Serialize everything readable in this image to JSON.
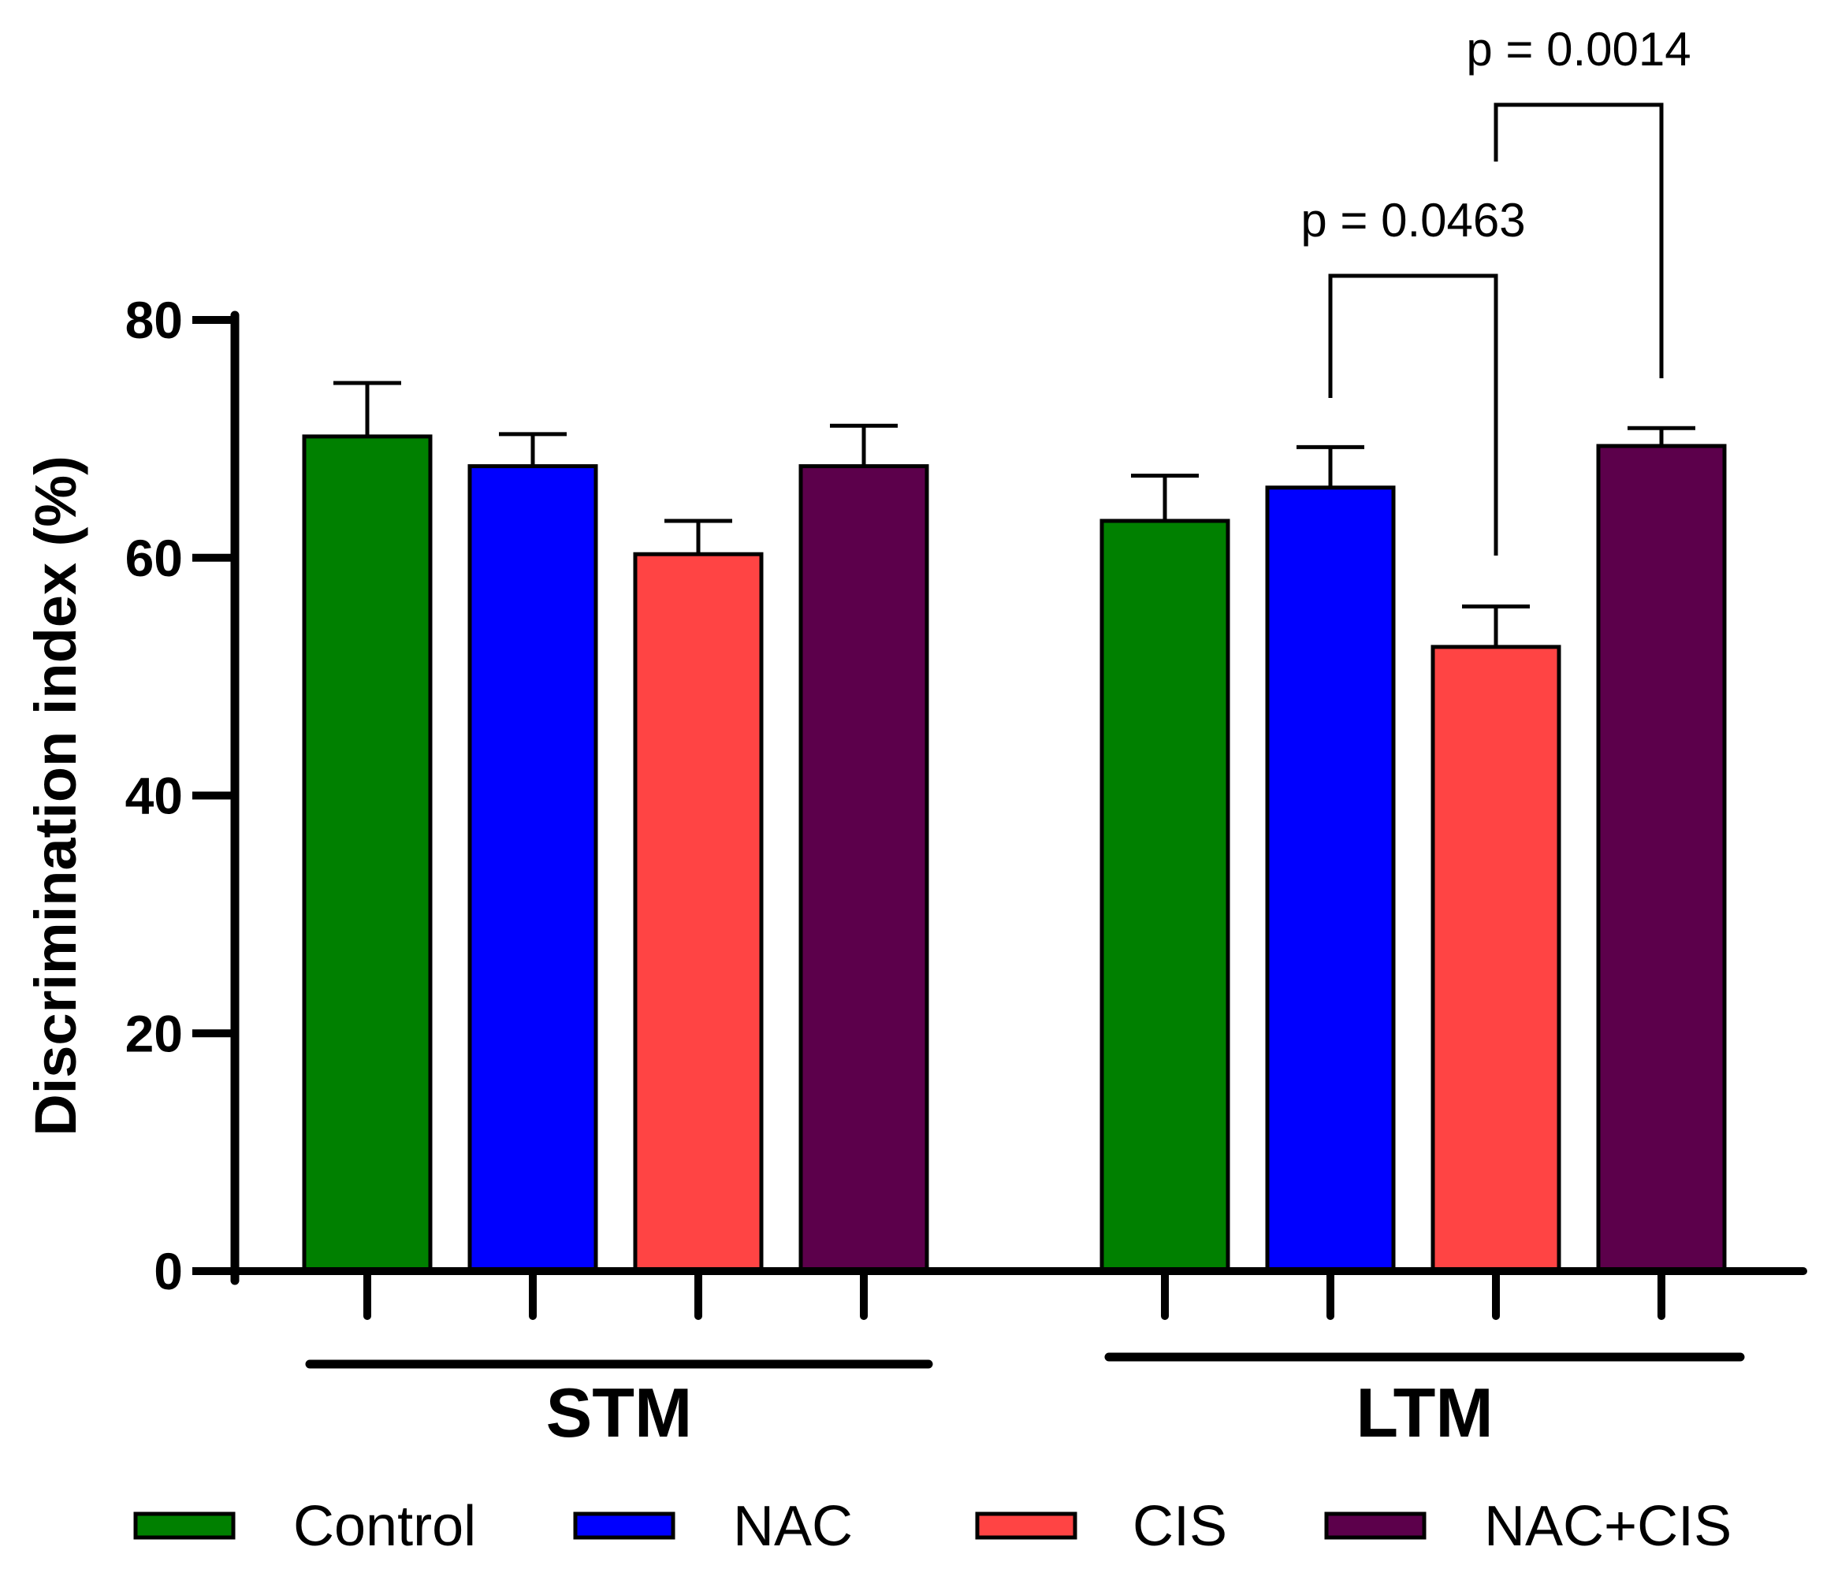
{
  "chart_data": {
    "type": "bar",
    "title": "",
    "xlabel": "",
    "ylabel": "Discrimination index (%)",
    "ylim": [
      0,
      80
    ],
    "yticks": [
      0,
      20,
      40,
      60,
      80
    ],
    "groups": [
      "STM",
      "LTM"
    ],
    "series": [
      {
        "name": "Control",
        "color": "#008000",
        "values": [
          70.2,
          63.1
        ],
        "errors": [
          4.5,
          3.8
        ]
      },
      {
        "name": "NAC",
        "color": "#0000ff",
        "values": [
          67.7,
          65.9
        ],
        "errors": [
          2.7,
          3.4
        ]
      },
      {
        "name": "CIS",
        "color": "#ff4444",
        "values": [
          60.3,
          52.5
        ],
        "errors": [
          2.8,
          3.4
        ]
      },
      {
        "name": "NAC+CIS",
        "color": "#5c004b",
        "values": [
          67.7,
          69.4
        ],
        "errors": [
          3.4,
          1.5
        ]
      }
    ],
    "annotations": [
      {
        "label": "p = 0.0463",
        "group": "LTM",
        "from": "NAC",
        "to": "CIS"
      },
      {
        "label": "p = 0.0014",
        "group": "LTM",
        "from": "CIS",
        "to": "NAC+CIS"
      }
    ],
    "legend": {
      "position": "bottom"
    }
  }
}
